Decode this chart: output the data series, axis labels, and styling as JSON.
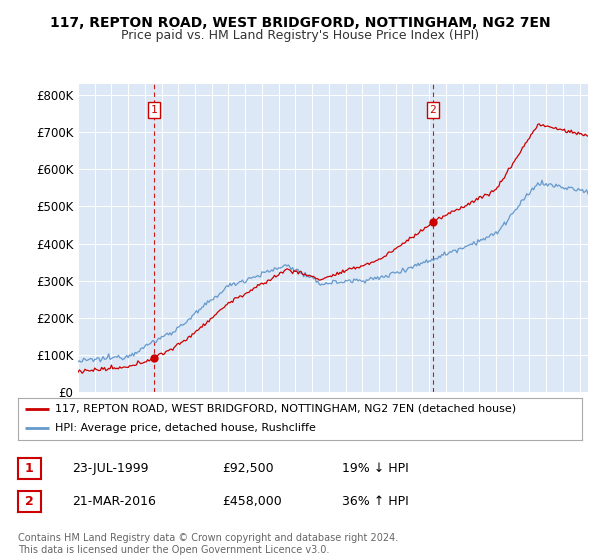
{
  "title1": "117, REPTON ROAD, WEST BRIDGFORD, NOTTINGHAM, NG2 7EN",
  "title2": "Price paid vs. HM Land Registry's House Price Index (HPI)",
  "ylabel_ticks": [
    "£0",
    "£100K",
    "£200K",
    "£300K",
    "£400K",
    "£500K",
    "£600K",
    "£700K",
    "£800K"
  ],
  "ytick_values": [
    0,
    100000,
    200000,
    300000,
    400000,
    500000,
    600000,
    700000,
    800000
  ],
  "ylim": [
    0,
    830000
  ],
  "xlim_start": 1995.0,
  "xlim_end": 2025.5,
  "sale1_x": 1999.55,
  "sale1_y": 92500,
  "sale2_x": 2016.22,
  "sale2_y": 458000,
  "sale1_label": "23-JUL-1999",
  "sale1_price": "£92,500",
  "sale1_hpi": "19% ↓ HPI",
  "sale2_label": "21-MAR-2016",
  "sale2_price": "£458,000",
  "sale2_hpi": "36% ↑ HPI",
  "line1_label": "117, REPTON ROAD, WEST BRIDGFORD, NOTTINGHAM, NG2 7EN (detached house)",
  "line2_label": "HPI: Average price, detached house, Rushcliffe",
  "footer": "Contains HM Land Registry data © Crown copyright and database right 2024.\nThis data is licensed under the Open Government Licence v3.0.",
  "red_color": "#cc0000",
  "blue_color": "#6699cc",
  "bg_color": "#dce8f5",
  "plot_bg": "#dce8f5"
}
